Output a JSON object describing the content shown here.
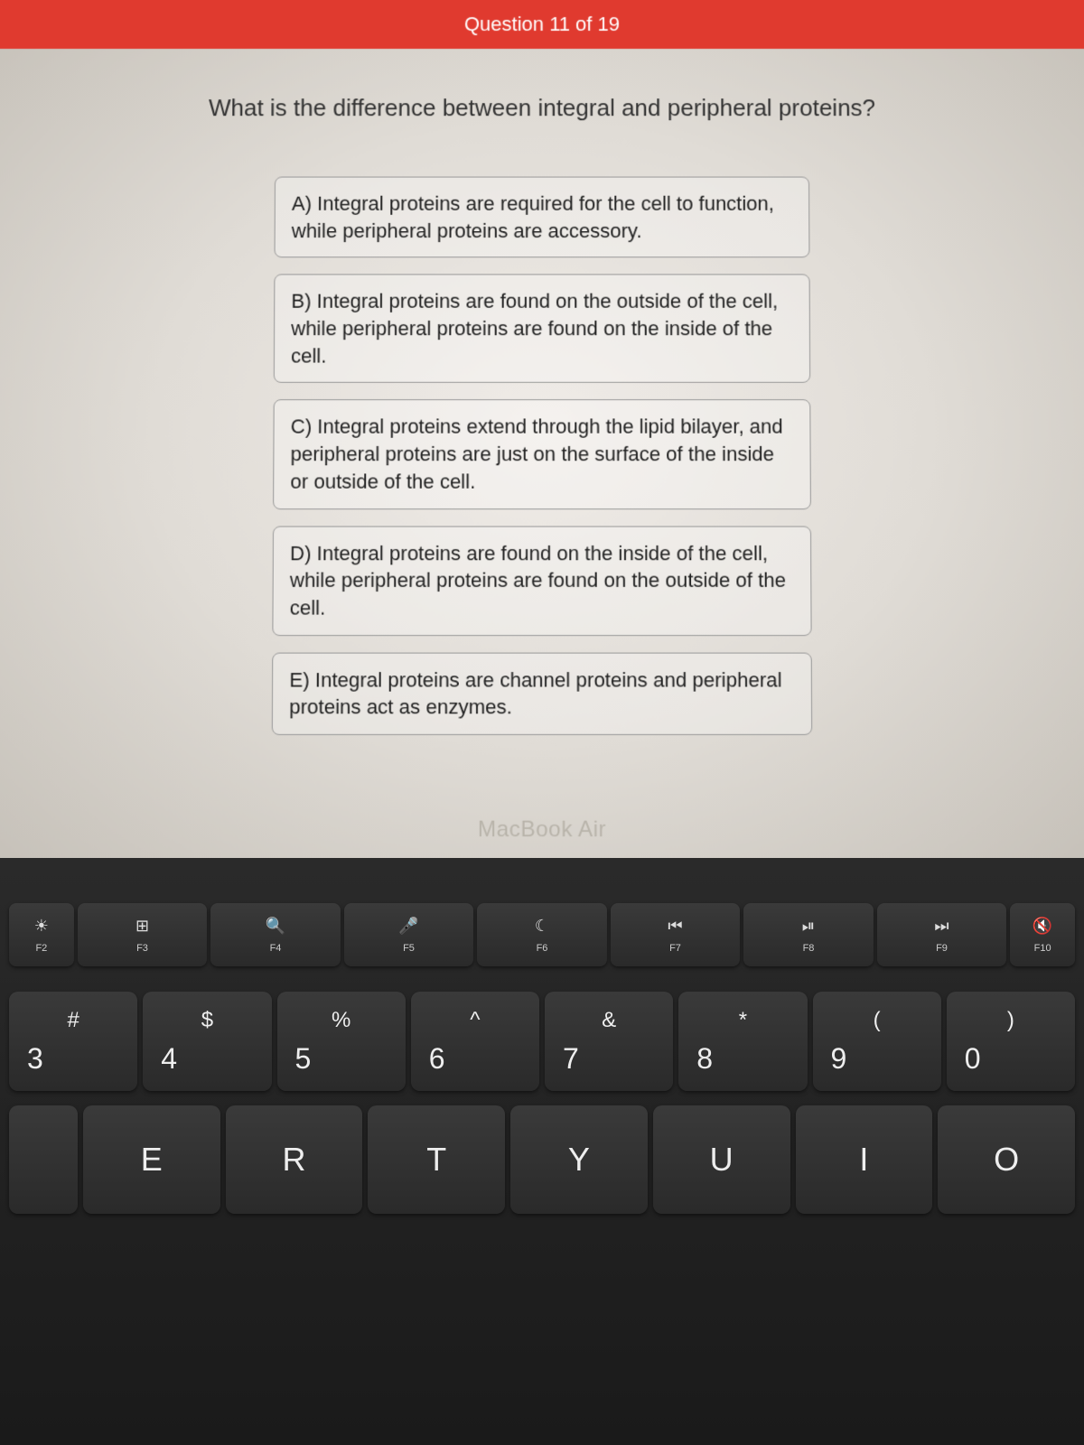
{
  "header": {
    "progress_text": "Question 11 of 19"
  },
  "question": {
    "text": "What is the difference between integral and peripheral proteins?"
  },
  "answers": [
    "A) Integral proteins are required for the cell to function, while peripheral proteins are accessory.",
    "B) Integral proteins are found on the outside of the cell, while peripheral proteins are found on the inside of the cell.",
    "C) Integral proteins extend through the lipid bilayer, and peripheral proteins are just on the surface of the inside or outside of the cell.",
    "D) Integral proteins are found on the inside of the cell, while peripheral proteins are found on the outside of the cell.",
    "E) Integral proteins are channel proteins and peripheral proteins act as enzymes."
  ],
  "laptop": {
    "model": "MacBook Air",
    "function_keys": [
      {
        "icon": "☀",
        "label": "F2"
      },
      {
        "icon": "⊞",
        "label": "F3"
      },
      {
        "icon": "🔍",
        "label": "F4"
      },
      {
        "icon": "🎤",
        "label": "F5"
      },
      {
        "icon": "☾",
        "label": "F6"
      },
      {
        "icon": "⏮",
        "label": "F7"
      },
      {
        "icon": "⏯",
        "label": "F8"
      },
      {
        "icon": "⏭",
        "label": "F9"
      },
      {
        "icon": "🔇",
        "label": "F10"
      }
    ],
    "number_keys": [
      {
        "symbol": "#",
        "number": "3"
      },
      {
        "symbol": "$",
        "number": "4"
      },
      {
        "symbol": "%",
        "number": "5"
      },
      {
        "symbol": "^",
        "number": "6"
      },
      {
        "symbol": "&",
        "number": "7"
      },
      {
        "symbol": "*",
        "number": "8"
      },
      {
        "symbol": "(",
        "number": "9"
      },
      {
        "symbol": ")",
        "number": "0"
      }
    ],
    "letter_keys": [
      "E",
      "R",
      "T",
      "Y",
      "U",
      "I",
      "O"
    ]
  },
  "colors": {
    "header_bg": "#e03a2f",
    "header_text": "#ffffff",
    "screen_bg": "#eae6e0",
    "text": "#333333",
    "border": "#999999",
    "key_bg": "#2a2a2a",
    "key_text": "#eeeeee"
  }
}
